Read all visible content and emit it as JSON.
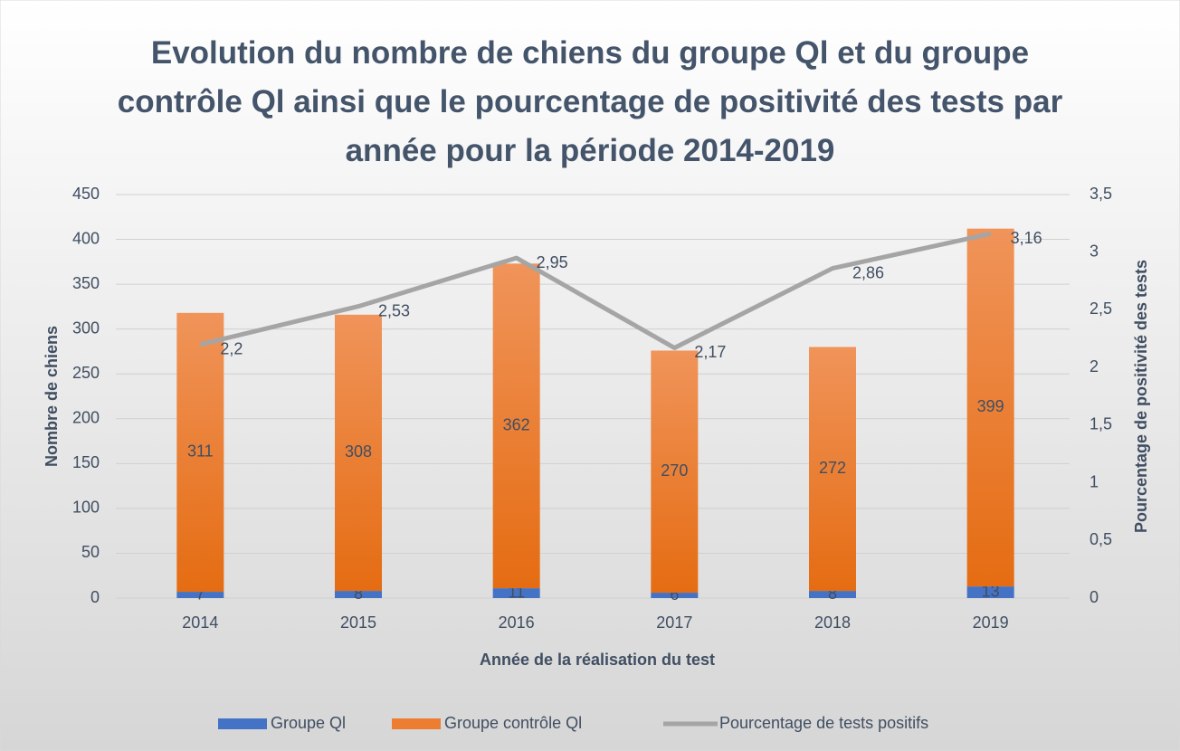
{
  "chart_data": {
    "type": "bar",
    "title": "Evolution du nombre de chiens du groupe Ql et du groupe contrôle Ql ainsi que le pourcentage de positivité des tests par année pour la période 2014-2019",
    "xlabel": "Année de la réalisation du test",
    "ylabel": "Nombre de chiens",
    "y2label": "Pourcentage de positivité des tests",
    "stacked": true,
    "categories": [
      "2014",
      "2015",
      "2016",
      "2017",
      "2018",
      "2019"
    ],
    "series": [
      {
        "name": "Groupe Ql",
        "type": "bar",
        "color": "#4472c4",
        "values": [
          7,
          8,
          11,
          6,
          8,
          13
        ]
      },
      {
        "name": "Groupe contrôle Ql",
        "type": "bar",
        "color": "#ed7d31",
        "values": [
          311,
          308,
          362,
          270,
          272,
          399
        ]
      },
      {
        "name": "Pourcentage de tests positifs",
        "type": "line",
        "axis": "y2",
        "color": "#a5a5a5",
        "values": [
          2.2,
          2.53,
          2.95,
          2.17,
          2.86,
          3.16
        ],
        "value_labels": [
          "2,2",
          "2,53",
          "2,95",
          "2,17",
          "2,86",
          "3,16"
        ]
      }
    ],
    "ylim": [
      0,
      450
    ],
    "yticks": [
      0,
      50,
      100,
      150,
      200,
      250,
      300,
      350,
      400,
      450
    ],
    "y2lim": [
      0,
      3.5
    ],
    "y2ticks": [
      0,
      {
        "value": 0.5,
        "label": "0,5"
      },
      1,
      {
        "value": 1.5,
        "label": "1,5"
      },
      2,
      {
        "value": 2.5,
        "label": "2,5"
      },
      3,
      {
        "value": 3.5,
        "label": "3,5"
      }
    ],
    "grid": true,
    "legend": "bottom"
  }
}
